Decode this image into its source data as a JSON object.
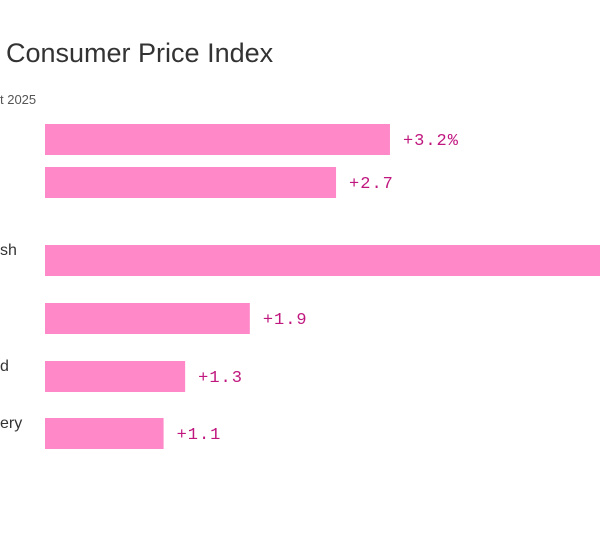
{
  "chart_data": {
    "type": "bar",
    "orientation": "horizontal",
    "title": "Consumer Price Index",
    "subtitle": "t 2025",
    "categories": [
      "",
      "",
      "sh",
      "",
      "d",
      "ery"
    ],
    "values": [
      3.2,
      2.7,
      5.5,
      1.9,
      1.3,
      1.1
    ],
    "data_labels": [
      "+3.2%",
      "+2.7",
      "",
      "+1.9",
      "+1.3",
      "+1.1"
    ],
    "bar_color": "#ff88c8",
    "label_color": "#c0177f",
    "grid": false
  }
}
